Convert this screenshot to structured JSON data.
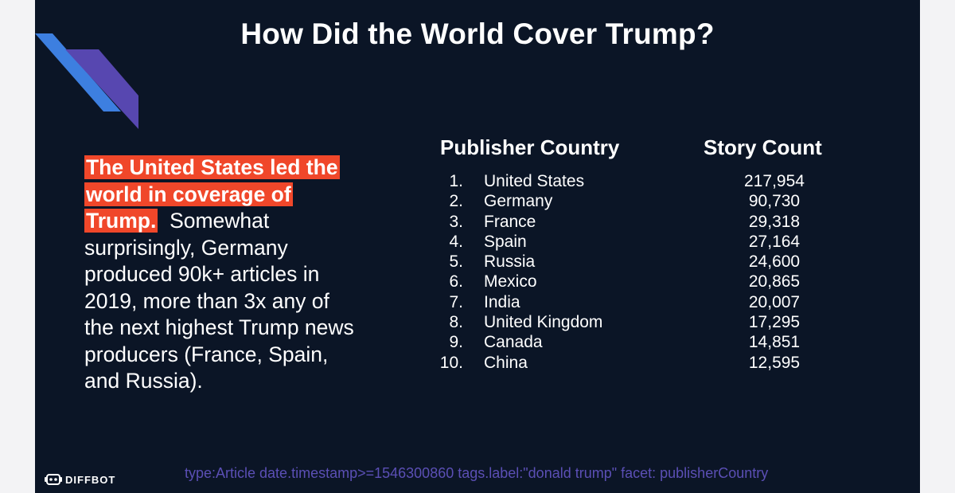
{
  "slide": {
    "title": "How Did the World Cover Trump?",
    "body": {
      "highlight": "The United States led the world in coverage of Trump.",
      "text": "  Somewhat surprisingly, Germany produced 90k+ articles in 2019, more than 3x any of the next highest Trump news producers (France, Spain, and Russia)."
    },
    "table": {
      "headers": [
        "Publisher Country",
        "Story Count"
      ],
      "rows": [
        {
          "rank": "1.",
          "country": "United States",
          "count": "217,954"
        },
        {
          "rank": "2.",
          "country": "Germany",
          "count": "90,730"
        },
        {
          "rank": "3.",
          "country": "France",
          "count": "29,318"
        },
        {
          "rank": "4.",
          "country": "Spain",
          "count": "27,164"
        },
        {
          "rank": "5.",
          "country": "Russia",
          "count": "24,600"
        },
        {
          "rank": "6.",
          "country": "Mexico",
          "count": "20,865"
        },
        {
          "rank": "7.",
          "country": "India",
          "count": "20,007"
        },
        {
          "rank": "8.",
          "country": "United Kingdom",
          "count": "17,295"
        },
        {
          "rank": "9.",
          "country": "Canada",
          "count": "14,851"
        },
        {
          "rank": "10.",
          "country": "China",
          "count": "12,595"
        }
      ]
    },
    "query": "type:Article date.timestamp>=1546300860 tags.label:\"donald trump\" facet: publisherCountry",
    "logo": {
      "text": "DIFFBOT",
      "icon": "diffbot-robot-icon"
    },
    "colors": {
      "background": "#0b1526",
      "highlight": "#f0472a",
      "query": "#5b4fb5",
      "stripe_light": "#3d7fe0",
      "stripe_dark": "#5747b0"
    }
  }
}
